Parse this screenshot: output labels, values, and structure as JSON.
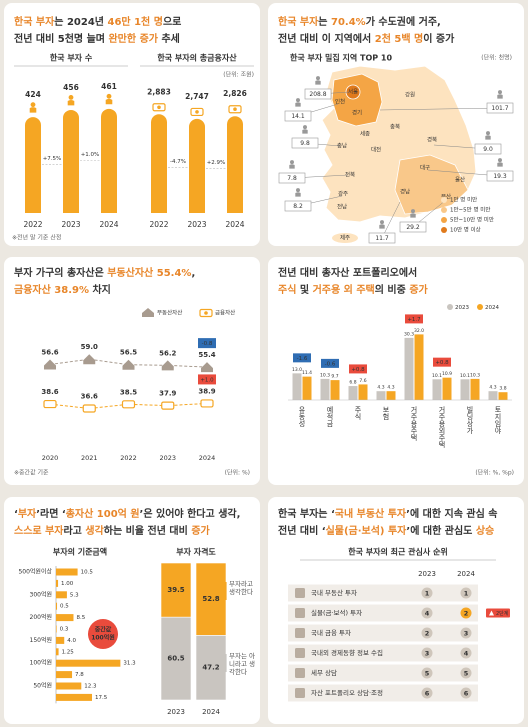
{
  "headings": [
    [
      [
        {
          "text": "한국 부자",
          "accent": true
        },
        {
          "text": "는 2024년 "
        },
        {
          "text": "46만 1천 명",
          "accent": true
        },
        {
          "text": "으로"
        }
      ],
      [
        {
          "text": "전년 대비 5천명 늘며 "
        },
        {
          "text": "완만한 증가",
          "accent": true
        },
        {
          "text": " 추세"
        }
      ]
    ],
    [
      [
        {
          "text": "한국 부자",
          "accent": true
        },
        {
          "text": "는 "
        },
        {
          "text": "70.4%",
          "accent": true
        },
        {
          "text": "가 수도권에 거주,"
        }
      ],
      [
        {
          "text": "전년 대비 이 지역에서 "
        },
        {
          "text": "2천 5백 명",
          "accent": true
        },
        {
          "text": "이 증가"
        }
      ]
    ],
    [
      [
        {
          "text": "부자 가구의 총자산은 "
        },
        {
          "text": "부동산자산 55.4%",
          "accent": true
        },
        {
          "text": ","
        }
      ],
      [
        {
          "text": "금융자산 38.9%",
          "accent": true
        },
        {
          "text": " 차지"
        }
      ]
    ],
    [
      [
        {
          "text": "전년 대비 총자산 포트폴리오에서"
        }
      ],
      [
        {
          "text": "주식",
          "accent": true
        },
        {
          "text": " 및 "
        },
        {
          "text": "거주용 외 주택",
          "accent": true
        },
        {
          "text": "의 비중 "
        },
        {
          "text": "증가",
          "accent": true
        }
      ]
    ],
    [
      [
        {
          "text": "‘"
        },
        {
          "text": "부자",
          "accent": true
        },
        {
          "text": "’라면 ‘"
        },
        {
          "text": "총자산 100억 원",
          "accent": true
        },
        {
          "text": "’은 있어야 한다고 생각,"
        }
      ],
      [
        {
          "text": "스스로 부자",
          "accent": true
        },
        {
          "text": "라고 "
        },
        {
          "text": "생각",
          "accent": true
        },
        {
          "text": "하는 비율 전년 대비 "
        },
        {
          "text": "증가",
          "accent": true
        }
      ]
    ],
    [
      [
        {
          "text": "한국 부자는 ‘"
        },
        {
          "text": "국내 부동산 투자",
          "accent": true
        },
        {
          "text": "’에 대한 지속 관심 속"
        }
      ],
      [
        {
          "text": "전년 대비 ‘"
        },
        {
          "text": "실물(금·보석) 투자",
          "accent": true
        },
        {
          "text": "’에 대한 관심도 "
        },
        {
          "text": "상승",
          "accent": true
        }
      ]
    ]
  ],
  "chart_data": [
    {
      "type": "bar",
      "title": "한국 부자 수",
      "categories": [
        "2022",
        "2023",
        "2024"
      ],
      "values": [
        424,
        456,
        461
      ],
      "changes": [
        "+7.5%",
        "+1.0%"
      ],
      "color": "#f5a623",
      "ylim": [
        0,
        500
      ],
      "icon": "person",
      "footnote": "※전년 말 기준 산정"
    },
    {
      "type": "bar",
      "title": "한국 부자의 총금융자산",
      "unit": "(단위: 조원)",
      "categories": [
        "2022",
        "2023",
        "2024"
      ],
      "values": [
        2883,
        2747,
        2826
      ],
      "value_labels": [
        "2,883",
        "2,747",
        "2,826"
      ],
      "changes": [
        "-4.7%",
        "+2.9%"
      ],
      "color": "#f5a623",
      "ylim": [
        0,
        3300
      ],
      "icon": "money"
    },
    {
      "type": "line",
      "categories": [
        "2020",
        "2021",
        "2022",
        "2023",
        "2024"
      ],
      "ylim": [
        20,
        70
      ],
      "series": [
        {
          "name": "부동산자산",
          "color": "#a89b8f",
          "values": [
            56.6,
            59.0,
            56.5,
            56.2,
            55.4
          ],
          "value_labels": [
            "56.6",
            "59.0",
            "56.5",
            "56.2",
            "55.4"
          ]
        },
        {
          "name": "금융자산",
          "color": "#f5a623",
          "values": [
            38.6,
            36.6,
            38.5,
            37.9,
            38.9
          ]
        }
      ],
      "annotations": [
        {
          "series": 0,
          "index": 4,
          "text": "-0.8",
          "color": "#2f6db3"
        },
        {
          "series": 1,
          "index": 4,
          "text": "+1.0",
          "color": "#e94b3c"
        }
      ],
      "footnote": "※중간값 기준",
      "unit": "(단위: %)"
    },
    {
      "type": "grouped_bar",
      "categories": [
        "유동성",
        "예적금",
        "주식",
        "보험",
        "거주용주택",
        "거주용외주택",
        "빌딩상가",
        "토지임야"
      ],
      "ylim": [
        0,
        40
      ],
      "series": [
        {
          "name": "2023",
          "color": "#c9c5c0",
          "values": [
            13.0,
            10.3,
            6.8,
            4.3,
            30.3,
            10.1,
            10.1,
            4.3
          ],
          "value_labels": [
            "13.0",
            "10.3",
            "6.8",
            "4.3",
            "30.3",
            "10.1",
            "10.1",
            "4.3"
          ]
        },
        {
          "name": "2024",
          "color": "#f5a623",
          "values": [
            11.4,
            9.7,
            7.6,
            4.3,
            32.0,
            10.9,
            10.3,
            3.8
          ],
          "value_labels": [
            "11.4",
            "9.7",
            "7.6",
            "4.3",
            "32.0",
            "10.9",
            "10.3",
            "3.8"
          ]
        }
      ],
      "annotations": [
        {
          "index": 0,
          "text": "-1.6",
          "color": "#2f6db3"
        },
        {
          "index": 1,
          "text": "-0.6",
          "color": "#2f6db3"
        },
        {
          "index": 2,
          "text": "+0.8",
          "color": "#e94b3c"
        },
        {
          "index": 4,
          "text": "+1.7",
          "color": "#e94b3c"
        },
        {
          "index": 5,
          "text": "+0.8",
          "color": "#e94b3c"
        }
      ],
      "unit": "(단위: %, %p)"
    },
    {
      "type": "hbar",
      "title": "부자의 기준금액",
      "categories": [
        "500억원이상",
        null,
        "300억원",
        null,
        "200억원",
        null,
        "150억원",
        null,
        "100억원",
        null,
        "50억원",
        null
      ],
      "values": [
        10.5,
        1.0,
        5.3,
        0.5,
        8.5,
        0.3,
        4.0,
        1.25,
        31.3,
        7.8,
        12.3,
        17.5
      ],
      "value_labels": [
        "10.5",
        "1.00",
        "5.3",
        "0.5",
        "8.5",
        "0.3",
        "4.0",
        "1.25",
        "31.3",
        "7.8",
        "12.3",
        "17.5"
      ],
      "color": "#f5a623",
      "xlim": [
        0,
        35
      ],
      "annotation": {
        "lines": [
          "중간값",
          "100억원"
        ],
        "color": "#e94b3c"
      }
    },
    {
      "type": "stacked_bar",
      "title": "부자 자격도",
      "categories": [
        "2023",
        "2024"
      ],
      "ylim": [
        0,
        100
      ],
      "series": [
        {
          "name": "부자는 아니라고 생각한다",
          "color": "#c9c5c0",
          "values": [
            60.5,
            47.2
          ]
        },
        {
          "name": "부자라고 생각한다",
          "color": "#f5a623",
          "values": [
            39.5,
            52.8
          ]
        }
      ]
    }
  ],
  "map": {
    "title": "한국 부자 밀집 지역 TOP 10",
    "unit": "(단위: 천명)",
    "regions": [
      "서울",
      "인천",
      "경기",
      "강원",
      "충북",
      "세종",
      "충남",
      "대전",
      "경북",
      "대구",
      "전북",
      "울산",
      "광주",
      "전남",
      "경남",
      "부산",
      "제주"
    ],
    "callouts": [
      "208.8",
      "101.7",
      "14.1",
      "9.8",
      "7.8",
      "8.2",
      "11.7",
      "29.2",
      "19.3",
      "9.0"
    ],
    "legend": [
      {
        "label": "1만 명 미만",
        "color": "#fde3bf"
      },
      {
        "label": "1만~5만 명 미만",
        "color": "#f9c88a"
      },
      {
        "label": "5만~10만 명 미만",
        "color": "#f4a545"
      },
      {
        "label": "10만 명 이상",
        "color": "#e07a1c"
      }
    ]
  },
  "ranking": {
    "title": "한국 부자의 최근 관심사 순위",
    "columns": [
      "2023",
      "2024"
    ],
    "rows": [
      {
        "label": "국내 부동산 투자",
        "ranks": [
          1,
          1
        ]
      },
      {
        "label": "실물(금·보석) 투자",
        "ranks": [
          4,
          2
        ],
        "badge": "2단계"
      },
      {
        "label": "국내 금융 투자",
        "ranks": [
          2,
          3
        ]
      },
      {
        "label": "국내외 경제동향 정보 수집",
        "ranks": [
          3,
          4
        ]
      },
      {
        "label": "세무 상담",
        "ranks": [
          5,
          5
        ]
      },
      {
        "label": "자산 포트폴리오 상담·조정",
        "ranks": [
          6,
          6
        ]
      }
    ]
  }
}
